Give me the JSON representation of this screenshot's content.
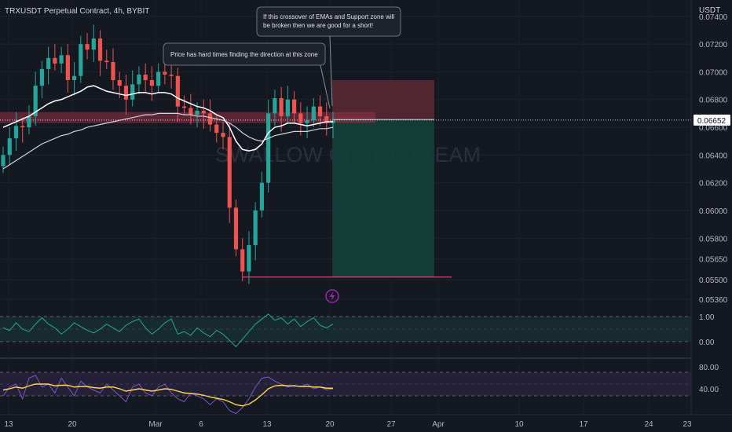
{
  "header": {
    "symbol_title": "TRXUSDT Perpetual Contract, 4h, BYBIT",
    "currency": "USDT"
  },
  "watermark": "SWALLOW CRYPTO TEAM",
  "annotations": [
    {
      "text_lines": [
        "Price has hard times finding the direction at this zone"
      ]
    },
    {
      "text_lines": [
        "If this crossover of EMAs and Support zone will",
        "be broken then we are good for a short!"
      ]
    }
  ],
  "colors": {
    "background": "#141821",
    "grid": "#1e222d",
    "up": "#26a69a",
    "down": "#ef5350",
    "ema_fast": "#ffffff",
    "ema_slow": "#d1d4dc",
    "support_zone": "#8c2f45",
    "stop_zone": "#5a2a33",
    "target_zone": "#14403a",
    "osc1": "#26a69a",
    "osc2_a": "#7e57c2",
    "osc2_b": "#ffd54f",
    "lightning": "#9c27b0"
  },
  "chart_data": {
    "type": "candlestick",
    "timeframe": "4h",
    "y_axis_unit": "USDT",
    "y_ticks": [
      "0.07400",
      "0.07200",
      "0.07000",
      "0.06800",
      "0.06600",
      "0.06400",
      "0.06200",
      "0.06000",
      "0.05800",
      "0.05650",
      "0.05500",
      "0.05360"
    ],
    "ylim": [
      0.0532,
      0.0745
    ],
    "x_tick_labels": [
      "13",
      "20",
      "Mar",
      "6",
      "13",
      "20",
      "27",
      "Apr",
      "10",
      "17",
      "24",
      "23"
    ],
    "last_price": "0.06652",
    "price_series_close": [
      0.064,
      0.0652,
      0.0661,
      0.066,
      0.0668,
      0.069,
      0.0702,
      0.071,
      0.0706,
      0.0712,
      0.0694,
      0.0697,
      0.072,
      0.0716,
      0.0724,
      0.0708,
      0.0707,
      0.0694,
      0.069,
      0.068,
      0.0691,
      0.0698,
      0.0694,
      0.069,
      0.07,
      0.0698,
      0.0697,
      0.0675,
      0.0674,
      0.0669,
      0.0672,
      0.067,
      0.0662,
      0.0656,
      0.0653,
      0.0602,
      0.0572,
      0.0556,
      0.0575,
      0.06,
      0.062,
      0.067,
      0.0681,
      0.0668,
      0.068,
      0.067,
      0.0663,
      0.0665,
      0.0675,
      0.0668,
      0.0663,
      0.0665
    ],
    "ema_fast_values": [
      0.066,
      0.0662,
      0.0664,
      0.0666,
      0.0668,
      0.0671,
      0.0674,
      0.0677,
      0.0679,
      0.068,
      0.0682,
      0.0684,
      0.0686,
      0.0689,
      0.069,
      0.0688,
      0.0686,
      0.0685,
      0.0684,
      0.0683,
      0.0684,
      0.0685,
      0.0685,
      0.0684,
      0.0685,
      0.0685,
      0.0684,
      0.0681,
      0.0679,
      0.0677,
      0.0675,
      0.0674,
      0.0672,
      0.0669,
      0.0667,
      0.066,
      0.065,
      0.0644,
      0.0643,
      0.0644,
      0.0648,
      0.0656,
      0.066,
      0.0661,
      0.0663,
      0.0663,
      0.0662,
      0.0661,
      0.0662,
      0.0663,
      0.0664,
      0.0664
    ],
    "ema_slow_values": [
      0.063,
      0.0633,
      0.0636,
      0.0639,
      0.0642,
      0.0645,
      0.0648,
      0.065,
      0.0652,
      0.0654,
      0.0655,
      0.0657,
      0.0658,
      0.066,
      0.0661,
      0.0662,
      0.0663,
      0.0664,
      0.0665,
      0.0666,
      0.0667,
      0.0668,
      0.0669,
      0.0669,
      0.067,
      0.067,
      0.067,
      0.067,
      0.0669,
      0.0669,
      0.0668,
      0.0668,
      0.0667,
      0.0666,
      0.0665,
      0.0663,
      0.066,
      0.0656,
      0.0653,
      0.0651,
      0.065,
      0.0652,
      0.0654,
      0.0655,
      0.0656,
      0.0657,
      0.0657,
      0.0657,
      0.0658,
      0.0659,
      0.0659,
      0.066
    ],
    "support_zone": [
      0.0663,
      0.0671
    ],
    "short_position": {
      "entry": 0.0665,
      "stop": 0.0694,
      "target": 0.0552
    },
    "support_line": 0.0552,
    "oscillator_1": {
      "levels": [
        "1.00",
        "0.00"
      ],
      "values": [
        0.55,
        0.45,
        0.75,
        0.5,
        0.4,
        0.7,
        0.95,
        0.7,
        0.55,
        0.3,
        0.5,
        0.75,
        0.6,
        0.45,
        0.35,
        0.5,
        0.7,
        0.55,
        0.4,
        0.65,
        0.8,
        0.9,
        0.55,
        0.3,
        0.5,
        0.75,
        0.9,
        0.3,
        0.4,
        0.25,
        0.55,
        0.35,
        0.2,
        0.45,
        0.3,
        0.05,
        -0.2,
        0.1,
        0.4,
        0.7,
        0.9,
        1.1,
        0.85,
        0.95,
        0.7,
        0.9,
        0.6,
        0.8,
        0.95,
        0.65,
        0.55,
        0.7
      ]
    },
    "oscillator_2": {
      "levels": [
        "80.00",
        "40.00"
      ],
      "values_a": [
        40,
        55,
        60,
        35,
        70,
        75,
        55,
        60,
        45,
        70,
        55,
        40,
        65,
        55,
        50,
        45,
        60,
        50,
        40,
        30,
        55,
        60,
        45,
        40,
        55,
        60,
        45,
        35,
        30,
        45,
        40,
        35,
        25,
        35,
        30,
        15,
        10,
        20,
        35,
        55,
        70,
        72,
        65,
        60,
        55,
        58,
        55,
        60,
        52,
        55,
        50,
        52
      ],
      "values_b": [
        50,
        52,
        55,
        53,
        57,
        60,
        60,
        60,
        57,
        58,
        58,
        55,
        56,
        56,
        54,
        53,
        55,
        55,
        52,
        48,
        50,
        52,
        50,
        48,
        50,
        52,
        51,
        48,
        45,
        44,
        43,
        41,
        38,
        36,
        34,
        30,
        25,
        23,
        26,
        33,
        42,
        52,
        57,
        58,
        57,
        57,
        56,
        56,
        55,
        55,
        53,
        53
      ]
    }
  }
}
